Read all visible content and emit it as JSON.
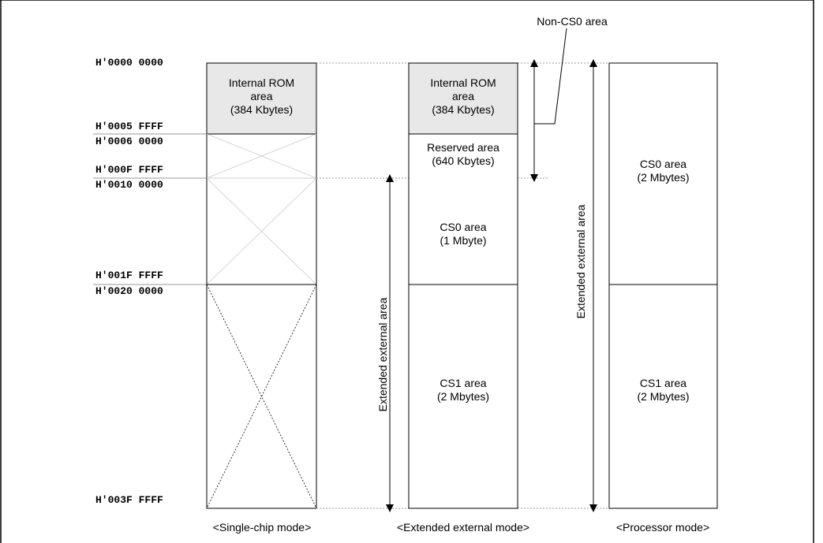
{
  "addresses": {
    "a0": "H'0000 0000",
    "a1": "H'0005 FFFF",
    "a2": "H'0006 0000",
    "a3": "H'000F FFFF",
    "a4": "H'0010 0000",
    "a5": "H'001F FFFF",
    "a6": "H'0020 0000",
    "a7": "H'003F FFFF"
  },
  "single_chip": {
    "rom_line1": "Internal ROM",
    "rom_line2": "area",
    "rom_line3": "(384 Kbytes)",
    "mode_label": "<Single-chip mode>"
  },
  "extended": {
    "rom_line1": "Internal ROM",
    "rom_line2": "area",
    "rom_line3": "(384 Kbytes)",
    "reserved_line1": "Reserved area",
    "reserved_line2": "(640 Kbytes)",
    "cs0_line1": "CS0 area",
    "cs0_line2": "(1 Mbyte)",
    "cs1_line1": "CS1 area",
    "cs1_line2": "(2 Mbytes)",
    "ext_label": "Extended external area",
    "mode_label": "<Extended external mode>"
  },
  "non_cs0_label": "Non-CS0 area",
  "processor": {
    "cs0_line1": "CS0 area",
    "cs0_line2": "(2 Mbytes)",
    "cs1_line1": "CS1 area",
    "cs1_line2": "(2 Mbytes)",
    "ext_label": "Extended external area",
    "mode_label": "<Processor mode>"
  },
  "colors": {
    "rom_fill": "#e8e8e8",
    "line": "#000000",
    "light_line": "#cccccc"
  }
}
